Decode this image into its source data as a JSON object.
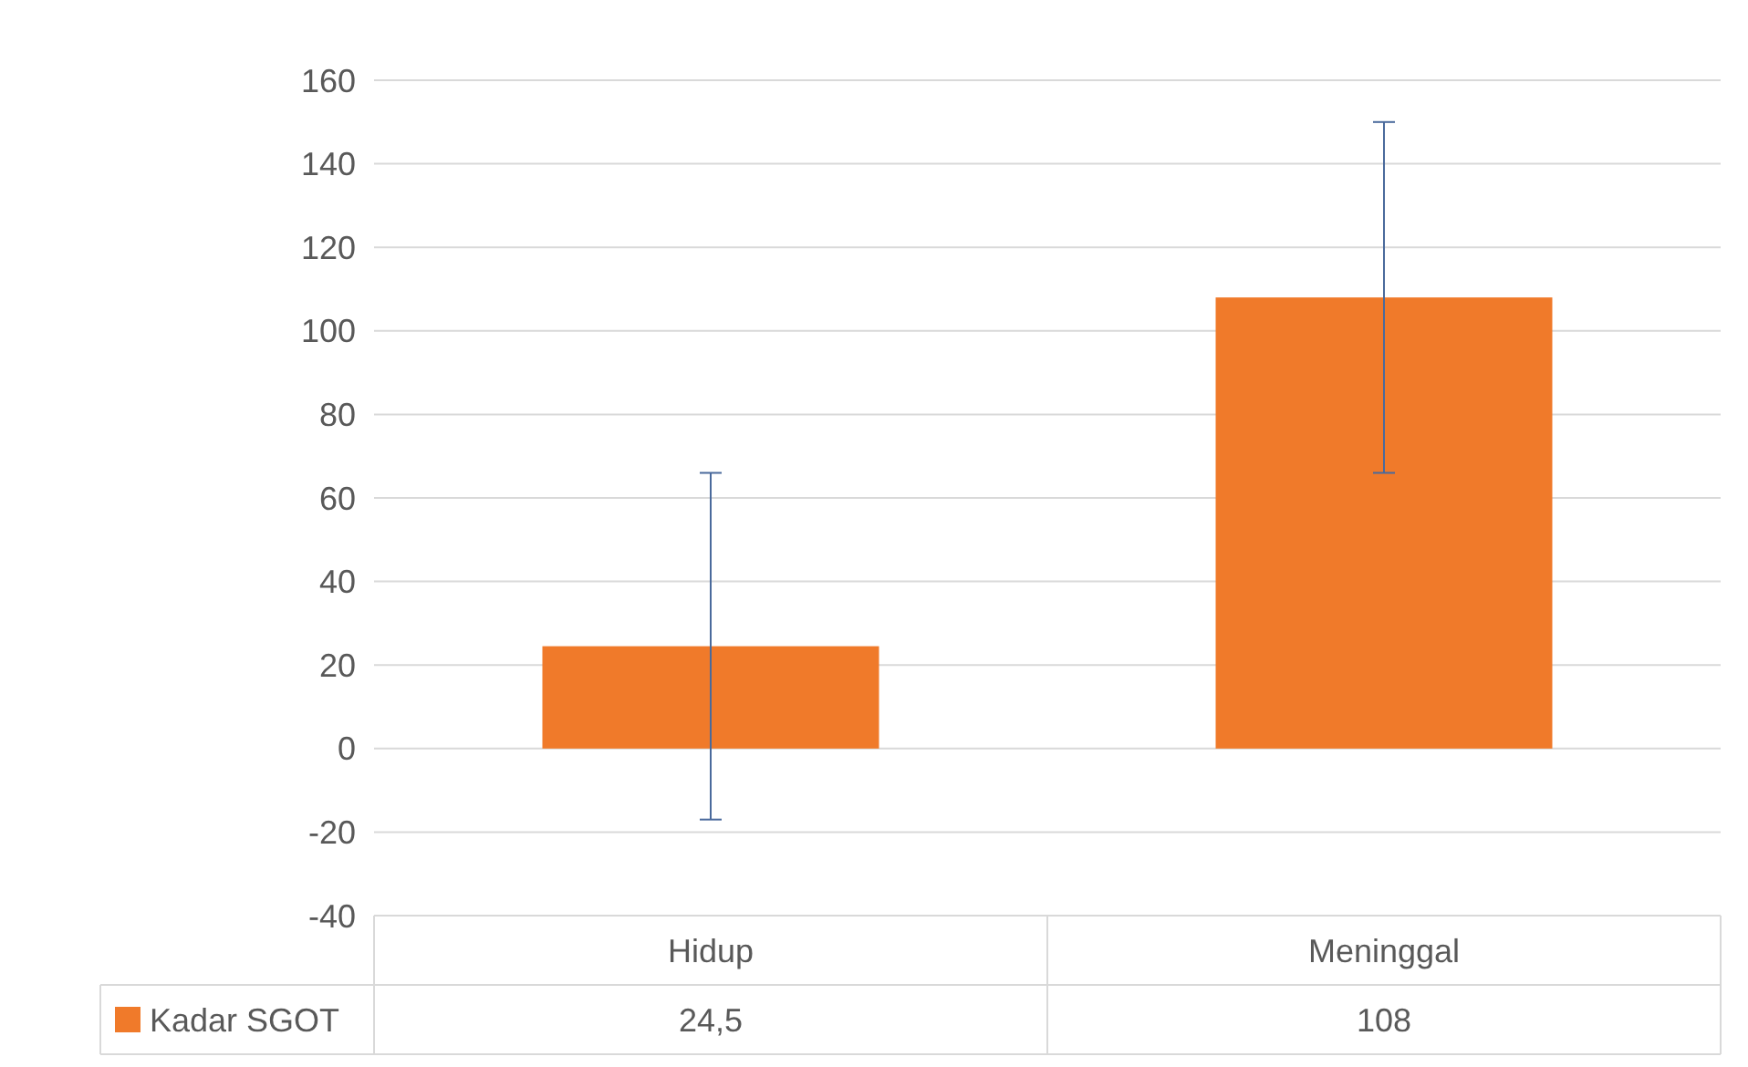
{
  "chart_data": {
    "type": "bar",
    "categories": [
      "Hidup",
      "Meninggal"
    ],
    "series": [
      {
        "name": "Kadar SGOT",
        "color": "#f07a2a",
        "values": [
          24.5,
          108
        ],
        "errors": [
          41.5,
          42
        ],
        "value_labels": [
          "24,5",
          "108"
        ]
      }
    ],
    "ylim": [
      -40,
      160
    ],
    "yticks": [
      -40,
      -20,
      0,
      20,
      40,
      60,
      80,
      100,
      120,
      140,
      160
    ],
    "grid": "y",
    "legend": "bottom"
  }
}
